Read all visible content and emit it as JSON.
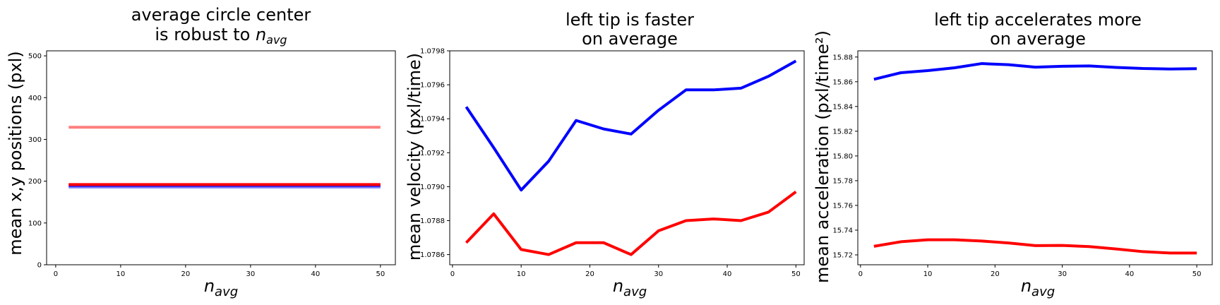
{
  "chart_data": [
    {
      "type": "line",
      "title": [
        "average circle center",
        "is robust to n_avg"
      ],
      "title_math": "avg",
      "xlabel": "n_avg",
      "ylabel": "mean x,y positions (pxl)",
      "xlim": [
        -1.4,
        52.3
      ],
      "ylim": [
        0,
        512
      ],
      "xticks": [
        0,
        10,
        20,
        30,
        40,
        50
      ],
      "yticks": [
        0,
        100,
        200,
        300,
        400,
        500
      ],
      "xtick_labels": [
        "0",
        "10",
        "20",
        "30",
        "40",
        "50"
      ],
      "ytick_labels": [
        "0",
        "100",
        "200",
        "300",
        "400",
        "500"
      ],
      "x": [
        2,
        6,
        10,
        14,
        18,
        22,
        26,
        30,
        34,
        38,
        42,
        46,
        50
      ],
      "series": [
        {
          "color": "#ff7f7f",
          "values": [
            329,
            329,
            329,
            329,
            329,
            329,
            329,
            329,
            329,
            329,
            329,
            329,
            329
          ]
        },
        {
          "color": "#8080ff",
          "values": [
            186,
            186,
            186,
            186,
            186,
            186,
            186,
            186,
            186,
            186,
            186,
            186,
            186
          ]
        },
        {
          "color": "#0000ff",
          "values": [
            190,
            190,
            190,
            190,
            190,
            190,
            190,
            190,
            190,
            190,
            190,
            190,
            190
          ]
        },
        {
          "color": "#ff0000",
          "values": [
            192,
            192,
            192,
            192,
            192,
            192,
            192,
            192,
            192,
            192,
            192,
            192,
            192
          ]
        }
      ]
    },
    {
      "type": "line",
      "title": [
        "left tip is faster",
        "on average"
      ],
      "xlabel": "n_avg",
      "ylabel": "mean velocity (pxl/time)",
      "xlim": [
        -0.4,
        51.2
      ],
      "ylim": [
        1.07854,
        1.0798
      ],
      "xticks": [
        0,
        10,
        20,
        30,
        40,
        50
      ],
      "yticks": [
        1.0786,
        1.0788,
        1.079,
        1.0792,
        1.0794,
        1.0796,
        1.0798
      ],
      "xtick_labels": [
        "0",
        "10",
        "20",
        "30",
        "40",
        "50"
      ],
      "ytick_labels": [
        "1.0786",
        "1.0788",
        "1.0790",
        "1.0792",
        "1.0794",
        "1.0796",
        "1.0798"
      ],
      "x": [
        2,
        6,
        10,
        14,
        18,
        22,
        26,
        30,
        34,
        38,
        42,
        46,
        50
      ],
      "series": [
        {
          "color": "#0000ff",
          "values": [
            1.07947,
            1.07923,
            1.07898,
            1.07915,
            1.07939,
            1.07934,
            1.07931,
            1.07945,
            1.07957,
            1.07957,
            1.07958,
            1.07965,
            1.07974
          ]
        },
        {
          "color": "#ff0000",
          "values": [
            1.07867,
            1.07884,
            1.07863,
            1.0786,
            1.07867,
            1.07867,
            1.0786,
            1.07874,
            1.0788,
            1.07881,
            1.0788,
            1.07885,
            1.07897
          ]
        }
      ]
    },
    {
      "type": "line",
      "title": [
        "left tip accelerates more",
        "on average"
      ],
      "xlabel": "n_avg",
      "ylabel": "mean acceleration (pxl/time²)",
      "xlim": [
        -0.4,
        52.3
      ],
      "ylim": [
        15.712,
        15.885
      ],
      "xticks": [
        0,
        10,
        20,
        30,
        40,
        50
      ],
      "yticks": [
        15.72,
        15.74,
        15.76,
        15.78,
        15.8,
        15.82,
        15.84,
        15.86,
        15.88
      ],
      "xtick_labels": [
        "0",
        "10",
        "20",
        "30",
        "40",
        "50"
      ],
      "ytick_labels": [
        "15.72",
        "15.74",
        "15.76",
        "15.78",
        "15.80",
        "15.82",
        "15.84",
        "15.86",
        "15.88"
      ],
      "x": [
        2,
        6,
        10,
        14,
        18,
        22,
        26,
        30,
        34,
        38,
        42,
        46,
        50
      ],
      "series": [
        {
          "color": "#0000ff",
          "values": [
            15.862,
            15.8673,
            15.869,
            15.8713,
            15.8747,
            15.8738,
            15.8718,
            15.8725,
            15.8728,
            15.8716,
            15.8707,
            15.8703,
            15.8706
          ]
        },
        {
          "color": "#ff0000",
          "values": [
            15.7269,
            15.7306,
            15.7322,
            15.7322,
            15.7312,
            15.7296,
            15.7275,
            15.7276,
            15.7267,
            15.7248,
            15.7226,
            15.7215,
            15.7215
          ]
        }
      ]
    }
  ]
}
